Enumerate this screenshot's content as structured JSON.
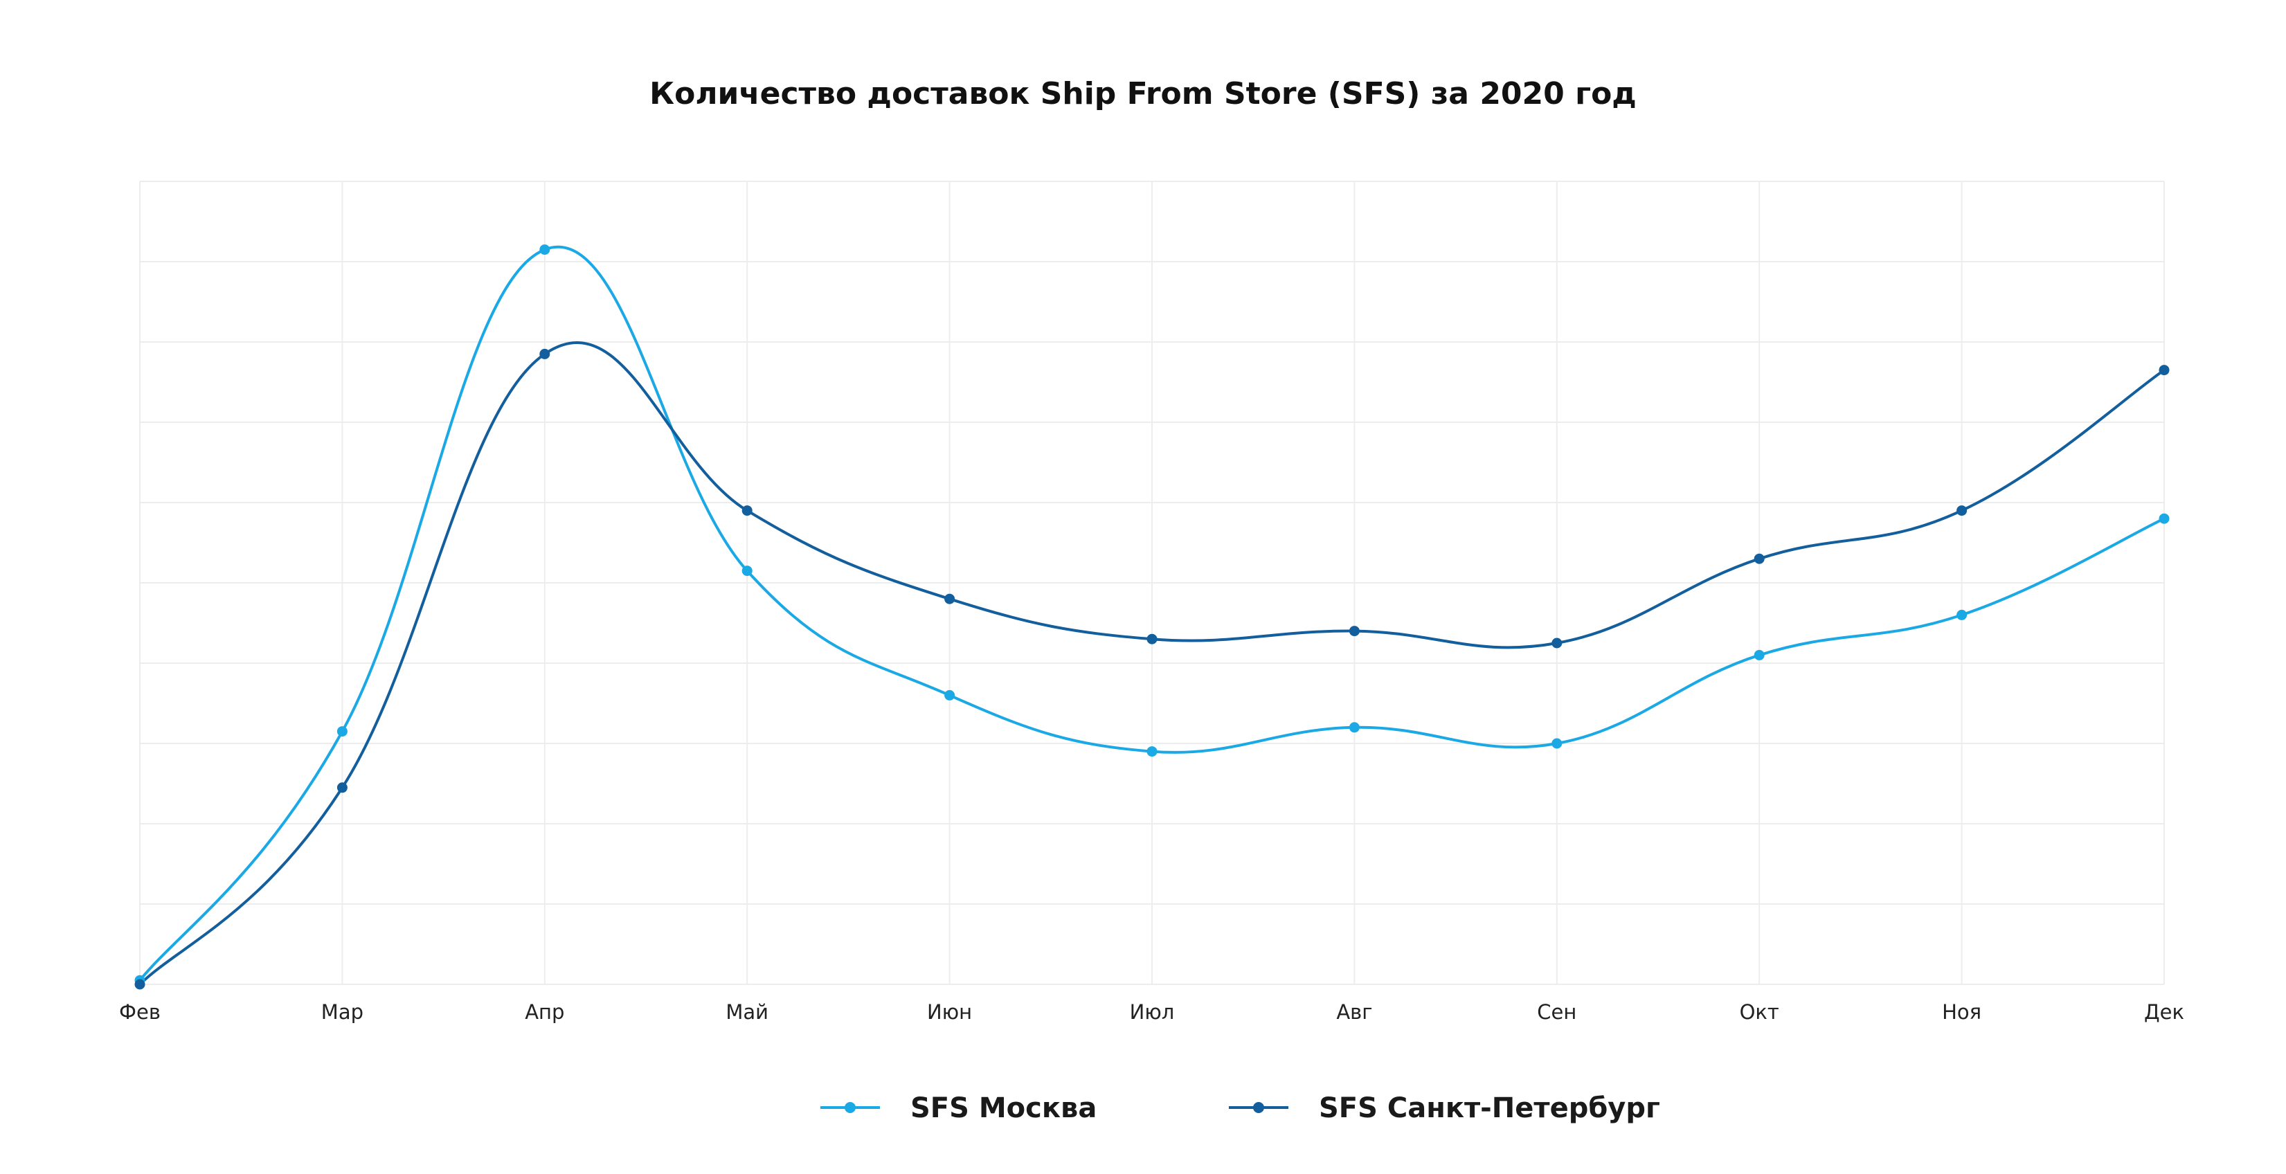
{
  "chart_data": {
    "type": "line",
    "title": "Количество доставок Ship From Store (SFS) за 2020 год",
    "xlabel": "",
    "ylabel": "",
    "categories": [
      "Фев",
      "Мар",
      "Апр",
      "Май",
      "Июн",
      "Июл",
      "Авг",
      "Сен",
      "Окт",
      "Ноя",
      "Дек"
    ],
    "ylim": [
      0,
      10
    ],
    "y_ticks_labeled": false,
    "grid": true,
    "smooth": true,
    "legend_position": "bottom",
    "series": [
      {
        "name": "SFS Москва",
        "color": "#1ba9e6",
        "values": [
          0.05,
          3.15,
          9.15,
          5.15,
          3.6,
          2.9,
          3.2,
          3.0,
          4.1,
          4.6,
          5.8
        ]
      },
      {
        "name": "SFS Санкт-Петербург",
        "color": "#135e9c",
        "values": [
          0.0,
          2.45,
          7.85,
          5.9,
          4.8,
          4.3,
          4.4,
          4.25,
          5.3,
          5.9,
          7.65
        ]
      }
    ]
  }
}
